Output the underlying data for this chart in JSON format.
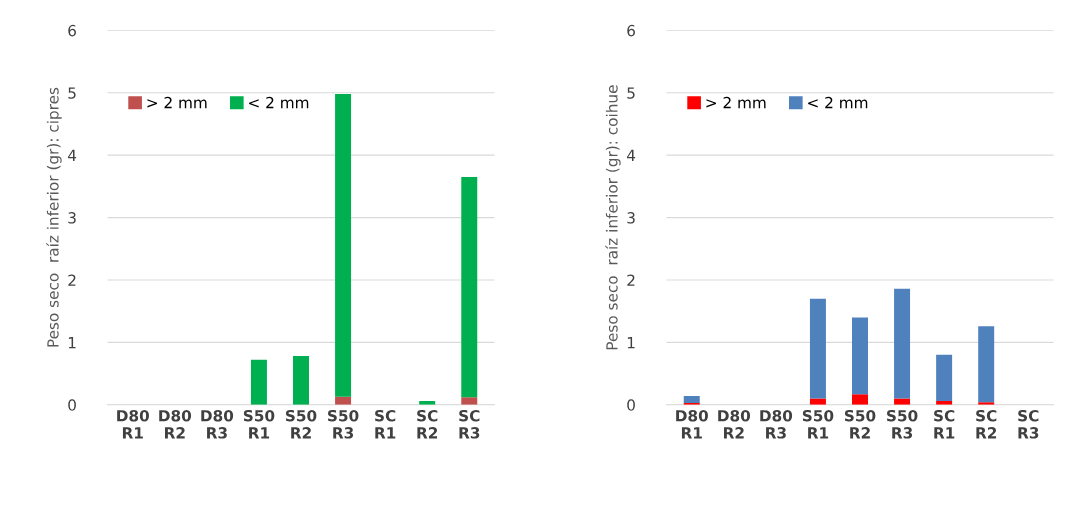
{
  "chart_data": [
    {
      "type": "bar",
      "stacked": true,
      "ylabel": "Peso seco  raíz inferior (gr): cipres",
      "categories": [
        "D80\nR1",
        "D80\nR2",
        "D80\nR3",
        "S50\nR1",
        "S50\nR2",
        "S50\nR3",
        "SC\nR1",
        "SC\nR2",
        "SC\nR3"
      ],
      "series": [
        {
          "name": "> 2 mm",
          "color": "#c0504d",
          "values": [
            0,
            0,
            0,
            0,
            null,
            0.13,
            0,
            null,
            0.12
          ]
        },
        {
          "name": "< 2 mm",
          "color": "#00b050",
          "values": [
            0,
            0,
            0,
            0.72,
            0.78,
            4.85,
            0,
            0.06,
            3.53
          ]
        }
      ],
      "ylim": [
        0,
        6
      ],
      "yticks": [
        0,
        1,
        2,
        3,
        4,
        5,
        6
      ],
      "grid": "y",
      "legend": "top left"
    },
    {
      "type": "bar",
      "stacked": true,
      "ylabel": "Peso seco  raíz inferior (gr): coihue",
      "categories": [
        "D80\nR1",
        "D80\nR2",
        "D80\nR3",
        "S50\nR1",
        "S50\nR2",
        "S50\nR3",
        "SC\nR1",
        "SC\nR2",
        "SC\nR3"
      ],
      "series": [
        {
          "name": "> 2 mm",
          "color": "#ff0000",
          "values": [
            0.03,
            0,
            0,
            0.1,
            0.17,
            0.1,
            0.06,
            0.04,
            0
          ]
        },
        {
          "name": "< 2 mm",
          "color": "#4f81bd",
          "values": [
            0.11,
            0,
            0,
            1.6,
            1.23,
            1.76,
            0.74,
            1.22,
            0
          ]
        }
      ],
      "ylim": [
        0,
        6
      ],
      "yticks": [
        0,
        1,
        2,
        3,
        4,
        5,
        6
      ],
      "grid": "y",
      "legend": "top left"
    }
  ]
}
